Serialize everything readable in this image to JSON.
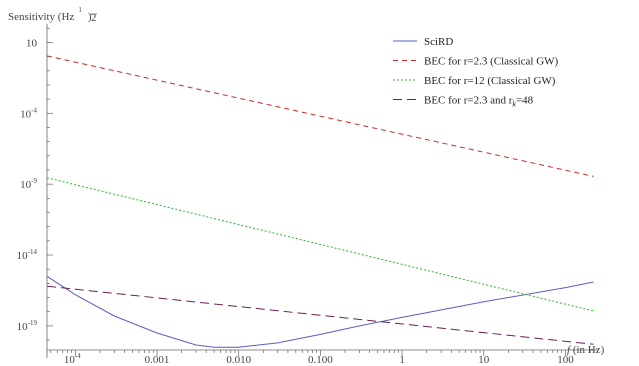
{
  "chart_data": {
    "type": "line",
    "ylabel": "Sensitivity (Hz",
    "ylabel_exp_num": "1",
    "ylabel_exp_den": "2",
    "ylabel_suffix": ")",
    "xlabel_f": "f",
    "xlabel_rest": " (in Hz)",
    "x_scale": "log",
    "y_scale": "log",
    "xlim": [
      4.5e-05,
      250
    ],
    "ylim_exp": [
      -20.7,
      2.3
    ],
    "x_ticks": [
      {
        "value": 0.0001,
        "label": "10",
        "sup": "-4"
      },
      {
        "value": 0.001,
        "label": "0.001"
      },
      {
        "value": 0.01,
        "label": "0.010"
      },
      {
        "value": 0.1,
        "label": "0.100"
      },
      {
        "value": 1,
        "label": "1"
      },
      {
        "value": 10,
        "label": "10"
      },
      {
        "value": 100,
        "label": "100"
      }
    ],
    "y_ticks": [
      {
        "exp": 1,
        "label": "10",
        "sup": ""
      },
      {
        "exp": -4,
        "label": "10",
        "sup": "-4"
      },
      {
        "exp": -9,
        "label": "10",
        "sup": "-9"
      },
      {
        "exp": -14,
        "label": "10",
        "sup": "-14"
      },
      {
        "exp": -19,
        "label": "10",
        "sup": "-19"
      }
    ],
    "series": [
      {
        "name": "SciRD",
        "color": "#5a5fc0",
        "dash": "",
        "points": [
          [
            4.5e-05,
            -15.5
          ],
          [
            0.0001,
            -16.8
          ],
          [
            0.0003,
            -18.3
          ],
          [
            0.001,
            -19.5
          ],
          [
            0.003,
            -20.35
          ],
          [
            0.005,
            -20.5
          ],
          [
            0.01,
            -20.5
          ],
          [
            0.03,
            -20.2
          ],
          [
            0.1,
            -19.6
          ],
          [
            0.3,
            -19.0
          ],
          [
            1,
            -18.4
          ],
          [
            10,
            -17.3
          ],
          [
            100,
            -16.3
          ],
          [
            220,
            -15.9
          ]
        ]
      },
      {
        "name": "BEC for r=2.3 (Classical GW)",
        "color": "#cc2b2b",
        "dash": "5,4",
        "points": [
          [
            4.5e-05,
            0.05
          ],
          [
            220,
            -8.45
          ]
        ]
      },
      {
        "name": "BEC for r=12 (Classical GW)",
        "color": "#2fb52f",
        "dash": "2,2",
        "points": [
          [
            4.5e-05,
            -8.55
          ],
          [
            220,
            -17.95
          ]
        ]
      },
      {
        "name_prefix": "BEC for r=2.3 and r",
        "name_sub": "k",
        "name_suffix": "=48",
        "color": "#6a1f52",
        "dash": "9,5",
        "points": [
          [
            4.5e-05,
            -16.2
          ],
          [
            220,
            -20.3
          ]
        ]
      }
    ],
    "legend_position": "top-right",
    "grid": false
  }
}
